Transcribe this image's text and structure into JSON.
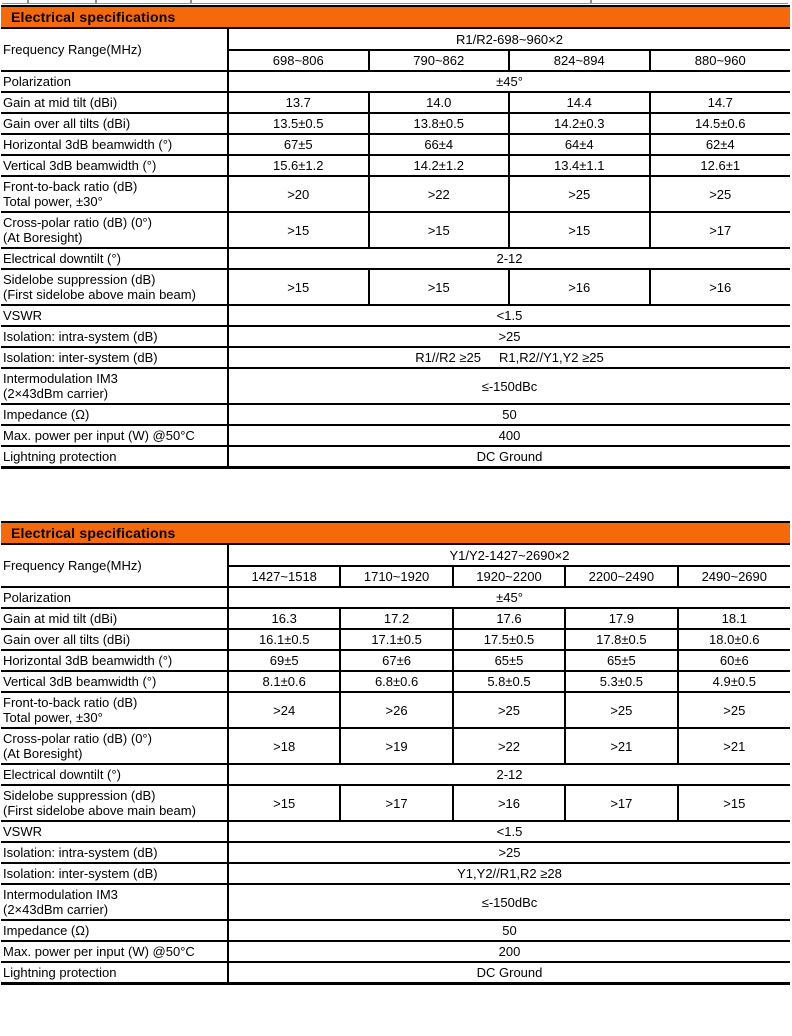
{
  "colors": {
    "section_bar": "#F5690A",
    "border": "#000000",
    "remnant_line": "#8f8f8f"
  },
  "tables": [
    {
      "section_title": "Electrical specifications",
      "frequency_row_label": "Frequency Range(MHz)",
      "band_label": "R1/R2-698~960×2",
      "columns": [
        "698~806",
        "790~862",
        "824~894",
        "880~960"
      ],
      "rows": [
        {
          "label": "Polarization",
          "values": [
            "±45°"
          ]
        },
        {
          "label": "Gain at mid tilt (dBi)",
          "values": [
            "13.7",
            "14.0",
            "14.4",
            "14.7"
          ]
        },
        {
          "label": "Gain over all tilts (dBi)",
          "values": [
            "13.5±0.5",
            "13.8±0.5",
            "14.2±0.3",
            "14.5±0.6"
          ]
        },
        {
          "label": "Horizontal 3dB beamwidth (°)",
          "values": [
            "67±5",
            "66±4",
            "64±4",
            "62±4"
          ]
        },
        {
          "label": "Vertical 3dB beamwidth (°)",
          "values": [
            "15.6±1.2",
            "14.2±1.2",
            "13.4±1.1",
            "12.6±1"
          ]
        },
        {
          "label": "Front-to-back ratio (dB)\nTotal power, ±30°",
          "values": [
            ">20",
            ">22",
            ">25",
            ">25"
          ]
        },
        {
          "label": "Cross-polar ratio (dB) (0°)\n(At Boresight)",
          "values": [
            ">15",
            ">15",
            ">15",
            ">17"
          ]
        },
        {
          "label": "Electrical downtilt (°)",
          "values": [
            "2-12"
          ]
        },
        {
          "label": "Sidelobe suppression (dB)\n(First sidelobe above main beam)",
          "values": [
            ">15",
            ">15",
            ">16",
            ">16"
          ]
        },
        {
          "label": "VSWR",
          "values": [
            "<1.5"
          ]
        },
        {
          "label": "Isolation: intra-system (dB)",
          "values": [
            ">25"
          ]
        },
        {
          "label": "Isolation: inter-system (dB)",
          "values": [
            "R1//R2 ≥25     R1,R2//Y1,Y2 ≥25"
          ]
        },
        {
          "label": "Intermodulation IM3\n(2×43dBm carrier)",
          "values": [
            "≤-150dBc"
          ]
        },
        {
          "label": "Impedance (Ω)",
          "values": [
            "50"
          ]
        },
        {
          "label": "Max. power per input (W) @50°C",
          "values": [
            "400"
          ]
        },
        {
          "label": "Lightning protection",
          "values": [
            "DC Ground"
          ]
        }
      ]
    },
    {
      "section_title": "Electrical specifications",
      "frequency_row_label": "Frequency Range(MHz)",
      "band_label": "Y1/Y2-1427~2690×2",
      "columns": [
        "1427~1518",
        "1710~1920",
        "1920~2200",
        "2200~2490",
        "2490~2690"
      ],
      "rows": [
        {
          "label": "Polarization",
          "values": [
            "±45°"
          ]
        },
        {
          "label": "Gain at mid tilt (dBi)",
          "values": [
            "16.3",
            "17.2",
            "17.6",
            "17.9",
            "18.1"
          ]
        },
        {
          "label": "Gain over all tilts (dBi)",
          "values": [
            "16.1±0.5",
            "17.1±0.5",
            "17.5±0.5",
            "17.8±0.5",
            "18.0±0.6"
          ]
        },
        {
          "label": "Horizontal 3dB beamwidth (°)",
          "values": [
            "69±5",
            "67±6",
            "65±5",
            "65±5",
            "60±6"
          ]
        },
        {
          "label": "Vertical 3dB beamwidth (°)",
          "values": [
            "8.1±0.6",
            "6.8±0.6",
            "5.8±0.5",
            "5.3±0.5",
            "4.9±0.5"
          ]
        },
        {
          "label": "Front-to-back ratio (dB)\nTotal power, ±30°",
          "values": [
            ">24",
            ">26",
            ">25",
            ">25",
            ">25"
          ]
        },
        {
          "label": "Cross-polar ratio (dB) (0°)\n(At Boresight)",
          "values": [
            ">18",
            ">19",
            ">22",
            ">21",
            ">21"
          ]
        },
        {
          "label": "Electrical downtilt (°)",
          "values": [
            "2-12"
          ]
        },
        {
          "label": "Sidelobe suppression (dB)\n(First sidelobe above main beam)",
          "values": [
            ">15",
            ">17",
            ">16",
            ">17",
            ">15"
          ]
        },
        {
          "label": "VSWR",
          "values": [
            "<1.5"
          ]
        },
        {
          "label": "Isolation: intra-system (dB)",
          "values": [
            ">25"
          ]
        },
        {
          "label": "Isolation: inter-system (dB)",
          "values": [
            "Y1,Y2//R1,R2 ≥28"
          ]
        },
        {
          "label": "Intermodulation IM3\n(2×43dBm carrier)",
          "values": [
            "≤-150dBc"
          ]
        },
        {
          "label": "Impedance (Ω)",
          "values": [
            "50"
          ]
        },
        {
          "label": "Max. power per input (W) @50°C",
          "values": [
            "200"
          ]
        },
        {
          "label": "Lightning protection",
          "values": [
            "DC Ground"
          ]
        }
      ]
    }
  ]
}
